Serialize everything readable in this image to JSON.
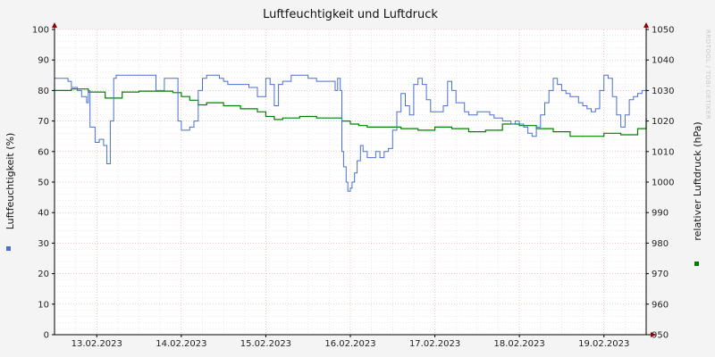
{
  "chart_data": {
    "type": "line",
    "title": "Luftfeuchtigkeit und Luftdruck",
    "watermark": "RRDTOOL / TOBI OETIKER",
    "y_left": {
      "label": "Luftfeuchtigkeit (%)",
      "range": [
        0,
        100
      ],
      "ticks": [
        "0",
        "10",
        "20",
        "30",
        "40",
        "50",
        "60",
        "70",
        "80",
        "90",
        "100"
      ]
    },
    "y_right": {
      "label": "relativer Luftdruck (hPa)",
      "range": [
        950,
        1050
      ],
      "ticks": [
        "950",
        "960",
        "970",
        "980",
        "990",
        "1000",
        "1010",
        "1020",
        "1030",
        "1040",
        "1050"
      ]
    },
    "x": {
      "range_days": [
        12.5,
        19.5
      ],
      "tick_labels": [
        "13.02.2023",
        "14.02.2023",
        "15.02.2023",
        "16.02.2023",
        "17.02.2023",
        "18.02.2023",
        "19.02.2023"
      ]
    },
    "grid": true,
    "colors": {
      "humidity": "#4a6fd4",
      "pressure": "#008000",
      "grid_minor": "#dddddd",
      "grid_major": "#e8a0a0",
      "axis": "#000000",
      "arrow": "#8b0000"
    },
    "series": [
      {
        "name": "Luftfeuchtigkeit",
        "axis": "left",
        "x": [
          12.5,
          12.62,
          12.66,
          12.7,
          12.77,
          12.82,
          12.88,
          12.9,
          12.92,
          12.98,
          13.03,
          13.08,
          13.12,
          13.16,
          13.2,
          13.23,
          13.26,
          13.3,
          13.35,
          13.42,
          13.5,
          13.6,
          13.7,
          13.8,
          13.88,
          13.95,
          13.96,
          14.0,
          14.02,
          14.05,
          14.1,
          14.15,
          14.2,
          14.25,
          14.3,
          14.35,
          14.4,
          14.45,
          14.5,
          14.55,
          14.6,
          14.7,
          14.8,
          14.9,
          15.0,
          15.05,
          15.1,
          15.15,
          15.2,
          15.25,
          15.28,
          15.3,
          15.35,
          15.4,
          15.45,
          15.5,
          15.55,
          15.6,
          15.7,
          15.8,
          15.82,
          15.85,
          15.88,
          15.9,
          15.92,
          15.95,
          15.97,
          16.0,
          16.02,
          16.05,
          16.08,
          16.12,
          16.15,
          16.2,
          16.25,
          16.3,
          16.35,
          16.4,
          16.45,
          16.5,
          16.55,
          16.6,
          16.65,
          16.7,
          16.75,
          16.8,
          16.85,
          16.9,
          16.95,
          17.0,
          17.05,
          17.1,
          17.15,
          17.2,
          17.25,
          17.3,
          17.35,
          17.4,
          17.45,
          17.5,
          17.55,
          17.6,
          17.65,
          17.7,
          17.75,
          17.8,
          17.85,
          17.9,
          17.95,
          18.0,
          18.05,
          18.08,
          18.1,
          18.15,
          18.2,
          18.25,
          18.3,
          18.35,
          18.4,
          18.45,
          18.5,
          18.55,
          18.6,
          18.65,
          18.7,
          18.75,
          18.8,
          18.85,
          18.9,
          18.95,
          19.0,
          19.05,
          19.1,
          19.15,
          19.2,
          19.25,
          19.3,
          19.35,
          19.4,
          19.45,
          19.5
        ],
        "values": [
          84,
          84,
          83,
          81,
          80,
          78,
          76,
          80,
          68,
          63,
          64,
          62,
          56,
          70,
          84,
          85,
          85,
          85,
          85,
          85,
          85,
          85,
          80,
          84,
          84,
          84,
          70,
          67,
          67,
          67,
          68,
          70,
          80,
          84,
          85,
          85,
          85,
          84,
          83,
          82,
          82,
          82,
          81,
          78,
          84,
          82,
          75,
          82,
          83,
          83,
          83,
          85,
          85,
          85,
          85,
          84,
          84,
          83,
          83,
          83,
          80,
          84,
          80,
          60,
          55,
          50,
          47,
          48,
          50,
          53,
          57,
          62,
          60,
          58,
          58,
          60,
          58,
          60,
          61,
          67,
          73,
          79,
          75,
          72,
          82,
          84,
          82,
          77,
          73,
          73,
          73,
          75,
          83,
          80,
          76,
          76,
          73,
          72,
          72,
          73,
          73,
          73,
          72,
          71,
          71,
          70,
          70,
          69,
          70,
          69,
          68,
          68,
          66,
          65,
          68,
          72,
          76,
          80,
          84,
          82,
          80,
          79,
          78,
          78,
          76,
          75,
          74,
          73,
          74,
          80,
          85,
          84,
          78,
          72,
          68,
          72,
          77,
          78,
          79,
          80,
          81
        ]
      },
      {
        "name": "relativer Luftdruck",
        "axis": "right",
        "x": [
          12.5,
          12.7,
          12.9,
          13.1,
          13.3,
          13.5,
          13.7,
          13.9,
          14.0,
          14.1,
          14.2,
          14.3,
          14.5,
          14.7,
          14.9,
          15.0,
          15.1,
          15.2,
          15.4,
          15.6,
          15.8,
          15.9,
          16.0,
          16.1,
          16.2,
          16.4,
          16.6,
          16.8,
          17.0,
          17.2,
          17.4,
          17.6,
          17.8,
          18.0,
          18.2,
          18.4,
          18.6,
          18.8,
          19.0,
          19.2,
          19.4,
          19.5
        ],
        "values": [
          1030,
          1030.5,
          1029.5,
          1027.5,
          1029.5,
          1029.8,
          1029.8,
          1029.3,
          1028,
          1026.8,
          1025.3,
          1026,
          1025,
          1024,
          1023,
          1021.5,
          1020.5,
          1021,
          1021.5,
          1021,
          1021,
          1020,
          1019,
          1018.5,
          1018,
          1018,
          1017.5,
          1017,
          1018,
          1017.5,
          1016.5,
          1017,
          1019,
          1018.5,
          1017.5,
          1016.5,
          1015,
          1015,
          1016,
          1015.5,
          1017.5,
          1021
        ]
      }
    ]
  }
}
